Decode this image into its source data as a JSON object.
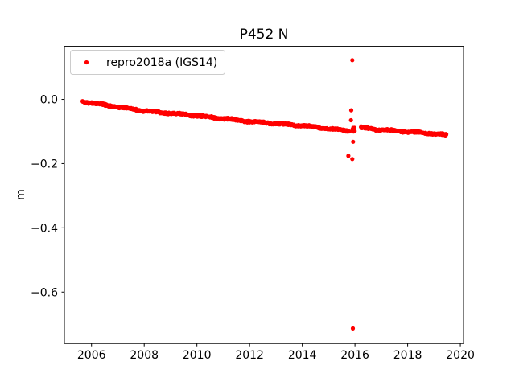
{
  "figure": {
    "background_color": "#ffffff",
    "frame_color": "#000000"
  },
  "chart_data": {
    "type": "scatter",
    "title": "P452 N",
    "xlabel": "",
    "ylabel": "m",
    "grid": false,
    "legend_position": "upper left",
    "legend": [
      {
        "label": "repro2018a (IGS14)",
        "marker": "dot",
        "color": "#ff0000"
      }
    ],
    "marker_color": "#ff0000",
    "marker_radius_px": 2.3,
    "xlim": [
      2004.97,
      2020.12
    ],
    "ylim": [
      -0.76,
      0.165
    ],
    "xticks": [
      2006,
      2008,
      2010,
      2012,
      2014,
      2016,
      2018,
      2020
    ],
    "xtick_labels": [
      "2006",
      "2008",
      "2010",
      "2012",
      "2014",
      "2016",
      "2018",
      "2020"
    ],
    "yticks": [
      0.0,
      -0.2,
      -0.4,
      -0.6
    ],
    "ytick_labels": [
      "0.0",
      "−0.2",
      "−0.4",
      "−0.6"
    ],
    "series": {
      "name": "repro2018a (IGS14)",
      "trend_segments": [
        {
          "anchors": [
            [
              2005.65,
              -0.006
            ],
            [
              2006.0,
              -0.011
            ],
            [
              2008.0,
              -0.036
            ],
            [
              2010.0,
              -0.051
            ],
            [
              2012.0,
              -0.069
            ],
            [
              2014.0,
              -0.082
            ],
            [
              2015.8,
              -0.099
            ]
          ]
        },
        {
          "anchors": [
            [
              2016.22,
              -0.088
            ],
            [
              2017.0,
              -0.095
            ],
            [
              2018.0,
              -0.101
            ],
            [
              2019.0,
              -0.107
            ],
            [
              2019.48,
              -0.112
            ]
          ]
        }
      ],
      "points_per_year": 125,
      "band_halfwidth_m": 0.004,
      "seasonal_amplitude_m": 0.0015,
      "cluster_2016": {
        "x_center": 2015.95,
        "x_spread": 0.055,
        "y_center": -0.0945,
        "y_spread": 0.008,
        "n_points": 60
      },
      "outliers": [
        [
          2015.9,
          0.122
        ],
        [
          2015.86,
          -0.034
        ],
        [
          2015.85,
          -0.065
        ],
        [
          2015.93,
          -0.132
        ],
        [
          2015.75,
          -0.176
        ],
        [
          2015.9,
          -0.186
        ],
        [
          2015.92,
          -0.713
        ]
      ]
    }
  }
}
